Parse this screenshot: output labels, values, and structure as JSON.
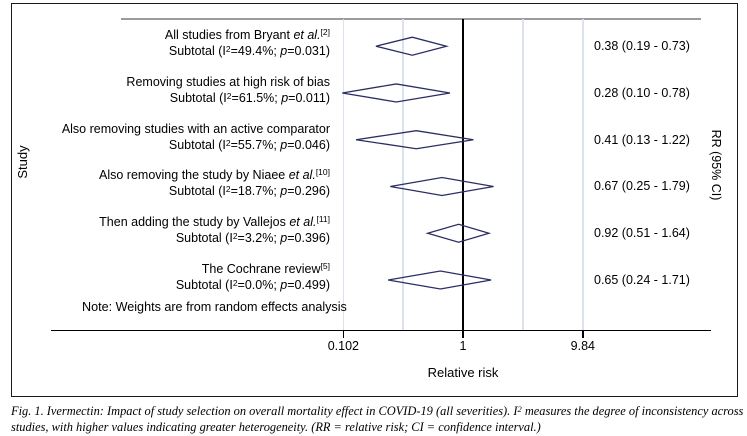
{
  "plot": {
    "y_axis_label": "Study",
    "right_axis_label": "RR (95% CI)",
    "x_axis_title": "Relative risk",
    "note": "Note: Weights are from random effects analysis",
    "x_ticks": [
      {
        "label": "0.102",
        "value": 0.102
      },
      {
        "label": "1",
        "value": 1
      },
      {
        "label": "9.84",
        "value": 9.84
      }
    ]
  },
  "chart_data": {
    "type": "forest",
    "title": "",
    "xlabel": "Relative risk",
    "ylabel": "Study",
    "right_label": "RR (95% CI)",
    "x_scale": "log",
    "x_ticks": [
      0.102,
      1,
      9.84
    ],
    "reference_line": 1,
    "note": "Note: Weights are from random effects analysis",
    "rows": [
      {
        "label_pre": "All studies from Bryant ",
        "label_italic": "et al.",
        "label_ref": "[2]",
        "subtotal_pre": "Subtotal (I",
        "subtotal_sup": "2",
        "subtotal_mid": "=49.4%; ",
        "subtotal_p": "p",
        "subtotal_post": "=0.031)",
        "rr": 0.38,
        "ci_low": 0.19,
        "ci_high": 0.73,
        "rr_label": "0.38 (0.19 - 0.73)"
      },
      {
        "label_pre": "Removing studies at high risk of bias",
        "label_italic": "",
        "label_ref": "",
        "subtotal_pre": "Subtotal (I",
        "subtotal_sup": "2",
        "subtotal_mid": "=61.5%; ",
        "subtotal_p": "p",
        "subtotal_post": "=0.011)",
        "rr": 0.28,
        "ci_low": 0.1,
        "ci_high": 0.78,
        "rr_label": "0.28 (0.10 - 0.78)"
      },
      {
        "label_pre": "Also removing studies with an active comparator",
        "label_italic": "",
        "label_ref": "",
        "subtotal_pre": "Subtotal (I",
        "subtotal_sup": "2",
        "subtotal_mid": "=55.7%; ",
        "subtotal_p": "p",
        "subtotal_post": "=0.046)",
        "rr": 0.41,
        "ci_low": 0.13,
        "ci_high": 1.22,
        "rr_label": "0.41 (0.13 - 1.22)"
      },
      {
        "label_pre": "Also removing the study by Niaee ",
        "label_italic": "et al.",
        "label_ref": "[10]",
        "subtotal_pre": "Subtotal (I",
        "subtotal_sup": "2",
        "subtotal_mid": "=18.7%; ",
        "subtotal_p": "p",
        "subtotal_post": "=0.296)",
        "rr": 0.67,
        "ci_low": 0.25,
        "ci_high": 1.79,
        "rr_label": "0.67 (0.25 - 1.79)"
      },
      {
        "label_pre": "Then adding the study by Vallejos ",
        "label_italic": "et al.",
        "label_ref": "[11]",
        "subtotal_pre": "Subtotal (I",
        "subtotal_sup": "2",
        "subtotal_mid": "=3.2%; ",
        "subtotal_p": "p",
        "subtotal_post": "=0.396)",
        "rr": 0.92,
        "ci_low": 0.51,
        "ci_high": 1.64,
        "rr_label": "0.92 (0.51 - 1.64)"
      },
      {
        "label_pre": "The Cochrane review",
        "label_italic": "",
        "label_ref": "[5]",
        "subtotal_pre": "Subtotal (I",
        "subtotal_sup": "2",
        "subtotal_mid": "=0.0%; ",
        "subtotal_p": "p",
        "subtotal_post": "=0.499)",
        "rr": 0.65,
        "ci_low": 0.24,
        "ci_high": 1.71,
        "rr_label": "0.65 (0.24 - 1.71)"
      }
    ]
  },
  "caption": {
    "pre_sup": "Fig. 1. Ivermectin: Impact of study selection on overall mortality effect in COVID-19 (all severities). I",
    "sup": "2",
    "post_sup": " measures the degree of inconsistency across studies, with higher values indicating greater heterogeneity. (RR = relative risk; CI = confidence interval.)"
  },
  "colors": {
    "diamond_outline": "#2b2e63",
    "gridline": "#dbe2ee",
    "axis": "#000000",
    "top_rule": "#9b9b9b"
  }
}
